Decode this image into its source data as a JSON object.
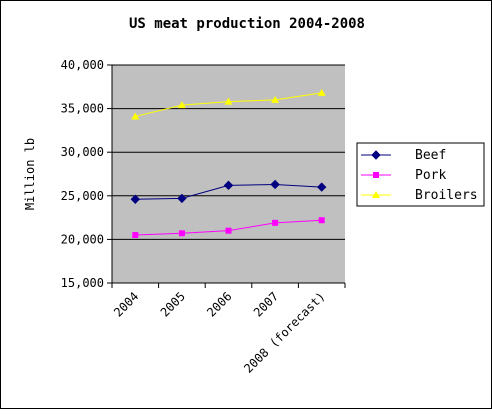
{
  "chart_data": {
    "type": "line",
    "title": "US meat production 2004-2008",
    "ylabel": "Million lb",
    "xlabel": "",
    "categories": [
      "2004",
      "2005",
      "2006",
      "2007",
      "2008 (forecast)"
    ],
    "ylim": [
      15000,
      40000
    ],
    "yticks": [
      15000,
      20000,
      25000,
      30000,
      35000,
      40000
    ],
    "ytick_labels": [
      "15,000",
      "20,000",
      "25,000",
      "30,000",
      "35,000",
      "40,000"
    ],
    "grid": true,
    "plot_background": "#c0c0c0",
    "legend_position": "right",
    "series": [
      {
        "name": "Beef",
        "color": "#000080",
        "marker": "diamond",
        "values": [
          24600,
          24700,
          26200,
          26300,
          26000
        ]
      },
      {
        "name": "Pork",
        "color": "#ff00ff",
        "marker": "square",
        "values": [
          20500,
          20700,
          21000,
          21900,
          22200
        ]
      },
      {
        "name": "Broilers",
        "color": "#ffff00",
        "marker": "triangle",
        "values": [
          34100,
          35400,
          35800,
          36000,
          36800
        ]
      }
    ]
  }
}
